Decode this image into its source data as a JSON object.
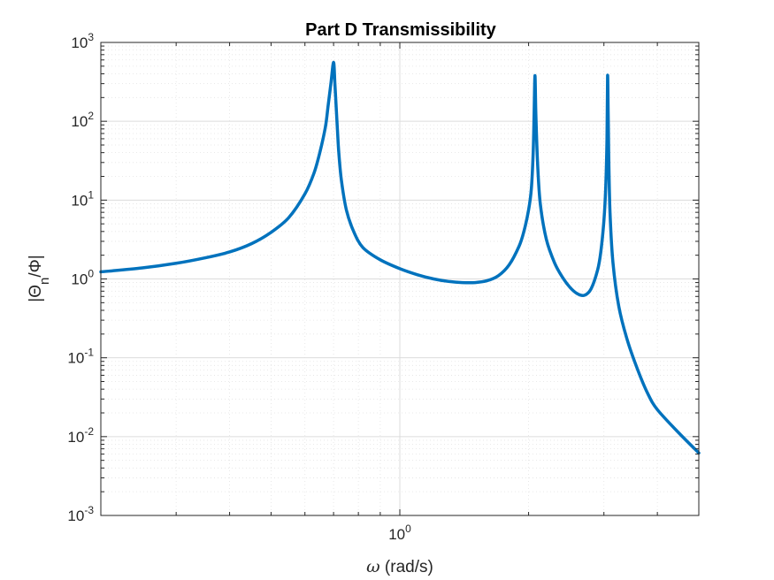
{
  "chart_data": {
    "type": "line",
    "title": "Part D Transmissibility",
    "xlabel_symbol": "ω",
    "xlabel_unit": " (rad/s)",
    "ylabel_parts": [
      "|Θ",
      "n",
      "/Φ|"
    ],
    "xscale": "log",
    "yscale": "log",
    "xlim": [
      0.2,
      5.0
    ],
    "ylim": [
      0.001,
      1000
    ],
    "grid": true,
    "minor_grid": true,
    "x_ticks": [
      {
        "base": "10",
        "exp": "0",
        "value": 1
      }
    ],
    "y_ticks": [
      {
        "base": "10",
        "exp": "-3",
        "value": 0.001
      },
      {
        "base": "10",
        "exp": "-2",
        "value": 0.01
      },
      {
        "base": "10",
        "exp": "-1",
        "value": 0.1
      },
      {
        "base": "10",
        "exp": "0",
        "value": 1
      },
      {
        "base": "10",
        "exp": "1",
        "value": 10
      },
      {
        "base": "10",
        "exp": "2",
        "value": 100
      },
      {
        "base": "10",
        "exp": "3",
        "value": 1000
      }
    ],
    "line_color": "#0072BD",
    "series": [
      {
        "x": [
          0.2,
          0.25,
          0.3,
          0.35,
          0.4,
          0.45,
          0.5,
          0.55,
          0.6,
          0.63,
          0.65,
          0.67,
          0.68,
          0.69,
          0.7,
          0.705,
          0.71,
          0.715,
          0.72,
          0.73,
          0.75,
          0.78,
          0.82,
          0.9,
          1.0,
          1.1,
          1.2,
          1.3,
          1.4,
          1.5,
          1.6,
          1.7,
          1.8,
          1.9,
          1.95,
          2.0,
          2.03,
          2.05,
          2.06,
          2.07,
          2.08,
          2.1,
          2.13,
          2.2,
          2.3,
          2.4,
          2.5,
          2.6,
          2.7,
          2.8,
          2.9,
          2.95,
          3.0,
          3.03,
          3.05,
          3.06,
          3.07,
          3.08,
          3.1,
          3.15,
          3.25,
          3.4,
          3.6,
          3.8,
          4.0,
          4.5,
          5.0
        ],
        "y": [
          1.23,
          1.38,
          1.58,
          1.85,
          2.2,
          2.8,
          3.9,
          6.0,
          12,
          22,
          40,
          85,
          160,
          300,
          560,
          300,
          150,
          75,
          40,
          18,
          7.5,
          4.0,
          2.5,
          1.75,
          1.35,
          1.13,
          1.0,
          0.93,
          0.9,
          0.9,
          0.95,
          1.1,
          1.5,
          2.6,
          4.0,
          7.5,
          14,
          40,
          120,
          380,
          120,
          28,
          9.0,
          3.2,
          1.6,
          1.05,
          0.78,
          0.65,
          0.62,
          0.75,
          1.3,
          2.2,
          5.5,
          15,
          60,
          380,
          120,
          32,
          7.0,
          1.6,
          0.45,
          0.17,
          0.07,
          0.035,
          0.022,
          0.011,
          0.0062
        ]
      }
    ]
  }
}
